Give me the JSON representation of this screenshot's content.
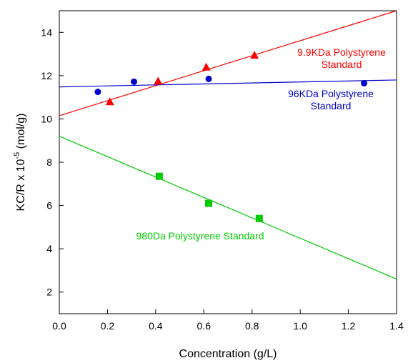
{
  "chart_data": {
    "type": "scatter",
    "xlabel": "Concentration (g/L)",
    "ylabel": {
      "prefix": "KC/R x 10",
      "exponent": "-5",
      "suffix": " (mol/g)"
    },
    "xlim": [
      0.0,
      1.4
    ],
    "ylim": [
      1.0,
      15.0
    ],
    "x_ticks": [
      "0.0",
      "0.2",
      "0.4",
      "0.6",
      "0.8",
      "1.0",
      "1.2",
      "1.4"
    ],
    "y_ticks": [
      "2",
      "4",
      "6",
      "8",
      "10",
      "12",
      "14"
    ],
    "grid": false,
    "legend": "none",
    "series": [
      {
        "color": "#ff0000",
        "marker": "triangle",
        "x": [
          0.21,
          0.41,
          0.61,
          0.81
        ],
        "y": [
          10.8,
          11.75,
          12.4,
          12.95
        ],
        "fit": {
          "x": [
            0.0,
            1.4
          ],
          "y": [
            10.15,
            15.0
          ]
        },
        "annotation": [
          "9.9KDa Polystyrene",
          "Standard"
        ]
      },
      {
        "color": "#0000cc",
        "marker": "circle",
        "x": [
          0.16,
          0.31,
          0.62,
          1.265
        ],
        "y": [
          11.25,
          11.72,
          11.85,
          11.65
        ],
        "fit": {
          "x": [
            0.0,
            1.4
          ],
          "y": [
            11.48,
            11.8
          ]
        },
        "annotation": [
          "96KDa Polystyrene",
          "Standard"
        ]
      },
      {
        "color": "#00cc00",
        "marker": "square",
        "x": [
          0.415,
          0.62,
          0.83
        ],
        "y": [
          7.35,
          6.1,
          5.4
        ],
        "fit": {
          "x": [
            0.0,
            1.4
          ],
          "y": [
            9.2,
            2.6
          ]
        },
        "annotation": [
          "980Da Polystyrene Standard"
        ]
      }
    ]
  }
}
